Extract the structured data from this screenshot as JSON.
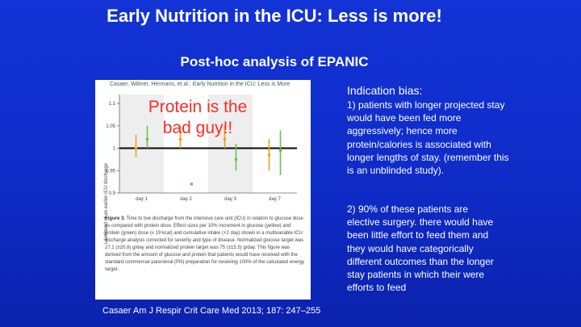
{
  "slide": {
    "title": "Early Nutrition in the ICU: Less is more!",
    "subtitle": "Post-hoc analysis of EPANIC",
    "overlay_text": "Protein is the bad guy!!",
    "indication_heading": "Indication bias:",
    "point1": "1) patients with longer projected stay would have been fed more aggressively; hence more protein/calories is associated with longer lengths of stay. (remember this is an unblinded study).",
    "point2": "2) 90% of these patients are elective surgery. there would have been little effort to feed them and they would have categorically different outcomes than the longer stay patients in which their were efforts to feed",
    "citation": "Casaer Am J Respir Crit Care Med 2013; 187: 247–255"
  },
  "figure": {
    "header": "Casaer, Wilmer, Hermans, et al.: Early Nutrition in the ICU: Less is More",
    "ylabel": "Likelihood of an earlier ICU discharge",
    "caption_label": "Figure 3.",
    "caption": "Time to live discharge from the intensive care unit (ICU) in relation to glucose dose as compared with protein dose. Effect sizes per 10% increment in glucose (yellow) and protein (green) dose (≤ 19 kcal) and cumulative intake (+2 day) shown in a multivariable ICU discharge analysis corrected for severity and type of disease. Normalized glucose target was 27.1 (±20.8) g/day and normalized protein target was 75 (±15.5) g/day. This figure was derived from the amount of glucose and protein that patients would have received with the standard commercial parenteral (PN) preparation for receiving 100% of the calculated energy target."
  },
  "chart_data": {
    "type": "scatter",
    "title": "",
    "xlabel": "",
    "ylabel": "Likelihood of an earlier ICU discharge",
    "categories": [
      "day 1",
      "day 2",
      "day 3",
      "day 7"
    ],
    "ylim": [
      0.9,
      1.12
    ],
    "yticks": [
      "0.9",
      "0.95",
      "1",
      "1.05",
      "1.1"
    ],
    "reference_line": 1.0,
    "series": [
      {
        "color": "#e9a21a",
        "points": [
          {
            "x": "day 1",
            "y": 1.0,
            "low": 0.98,
            "high": 1.03
          },
          {
            "x": "day 2",
            "y": 1.02,
            "low": 1.0,
            "high": 1.05
          },
          {
            "x": "day 3",
            "y": 1.02,
            "low": 1.0,
            "high": 1.05
          },
          {
            "x": "day 7",
            "y": 0.985,
            "low": 0.95,
            "high": 1.02
          }
        ]
      },
      {
        "color": "#6bbf4e",
        "points": [
          {
            "x": "day 1",
            "y": 1.02,
            "low": 1.0,
            "high": 1.05
          },
          {
            "x": "day 2",
            "y": 0.92,
            "low": 0.92,
            "high": 0.92
          },
          {
            "x": "day 3",
            "y": 0.975,
            "low": 0.95,
            "high": 1.01
          },
          {
            "x": "day 7",
            "y": 0.995,
            "low": 0.94,
            "high": 1.04
          }
        ]
      }
    ]
  }
}
